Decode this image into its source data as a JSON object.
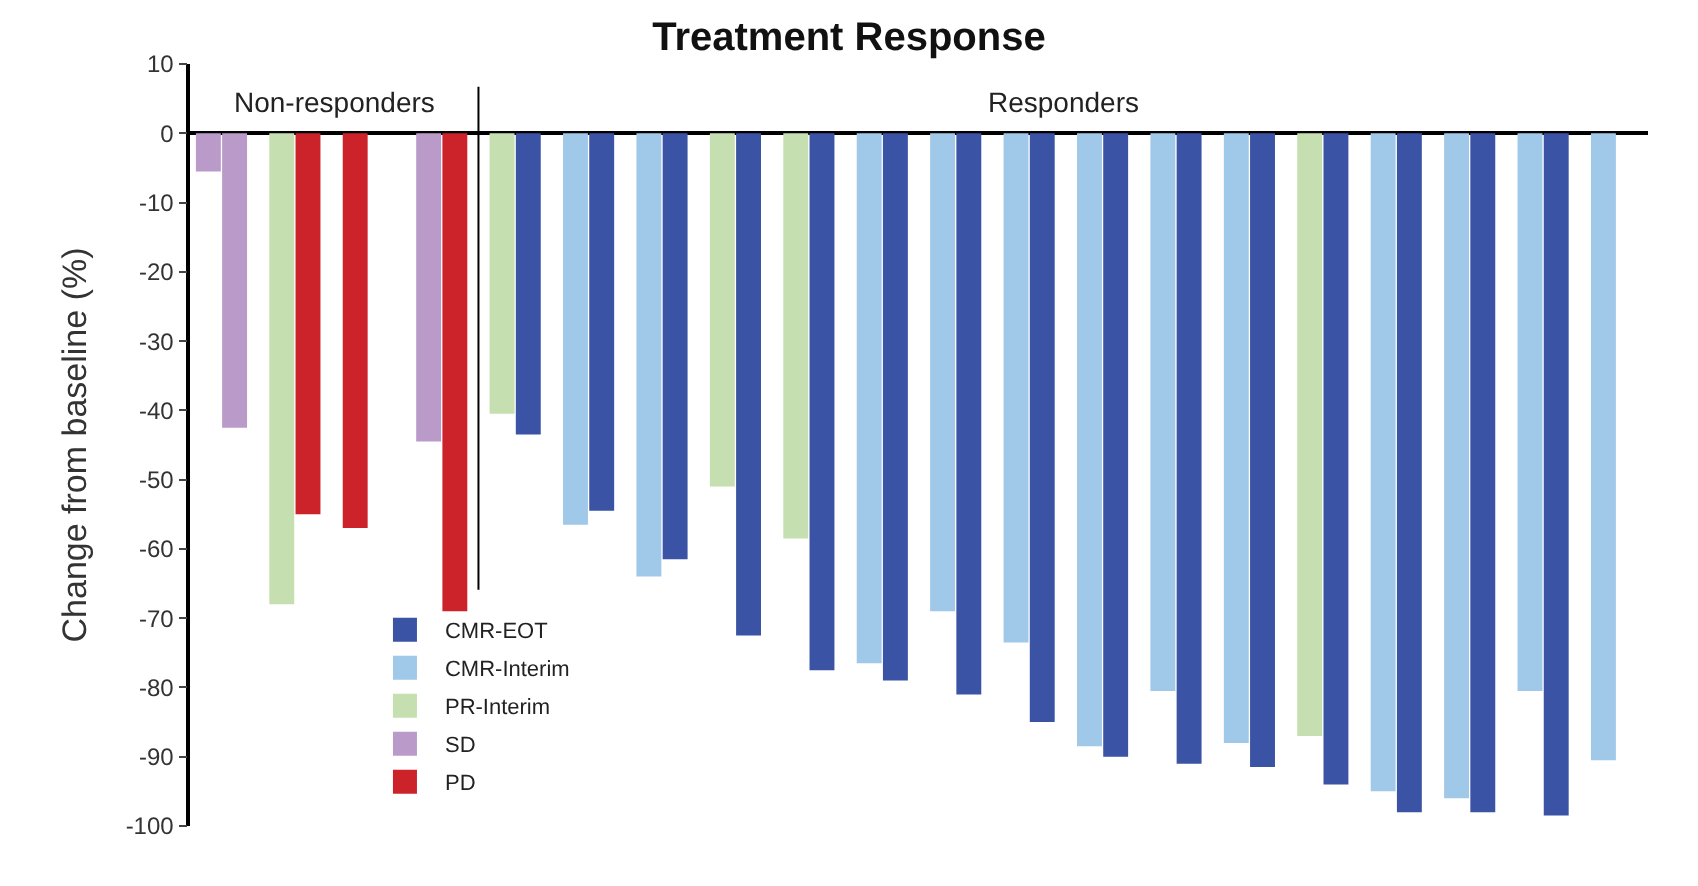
{
  "chart_data": {
    "type": "bar",
    "title": "Treatment Response",
    "ylabel": "Change from baseline (%)",
    "categories": [
      null,
      null,
      null,
      null,
      null,
      null,
      null,
      null,
      null,
      null,
      null,
      null,
      null,
      null,
      null,
      null,
      null,
      null,
      null,
      null,
      null,
      null,
      null,
      null,
      null,
      null,
      null,
      null,
      null,
      null,
      null,
      null,
      null,
      null,
      null,
      null,
      null,
      null,
      null,
      null
    ],
    "series": [
      {
        "name": "CMR-EOT",
        "color": "#3a53a4",
        "values": [
          null,
          null,
          null,
          null,
          null,
          null,
          null,
          null,
          null,
          -43.5,
          null,
          -54.5,
          null,
          -61.5,
          null,
          -72.5,
          null,
          -77.5,
          null,
          -79,
          null,
          -81,
          null,
          -85,
          null,
          -90,
          null,
          -91,
          null,
          -91.5,
          null,
          -94,
          null,
          -98,
          null,
          -98,
          null,
          -98.5,
          null,
          null
        ]
      },
      {
        "name": "CMR-Interim",
        "color": "#9fc8e9",
        "values": [
          null,
          null,
          null,
          null,
          null,
          null,
          null,
          null,
          null,
          null,
          -56.5,
          null,
          -64,
          null,
          null,
          null,
          null,
          null,
          -76.5,
          null,
          -69,
          null,
          -73.5,
          null,
          -88.5,
          null,
          -80.5,
          null,
          -88,
          null,
          null,
          null,
          -95,
          null,
          -96,
          null,
          -80.5,
          null,
          -90.5,
          null
        ]
      },
      {
        "name": "PR-Interim",
        "color": "#c6dfb0",
        "values": [
          null,
          null,
          -68,
          null,
          null,
          null,
          null,
          null,
          -40.5,
          null,
          null,
          null,
          null,
          null,
          -51,
          null,
          -58.5,
          null,
          null,
          null,
          null,
          null,
          null,
          null,
          null,
          null,
          null,
          null,
          null,
          null,
          -87,
          null,
          null,
          null,
          null,
          null,
          null,
          null,
          null,
          null
        ]
      },
      {
        "name": "SD",
        "color": "#b99ac9",
        "values": [
          -5.5,
          -42.5,
          null,
          null,
          null,
          null,
          -44.5,
          null,
          null,
          null,
          null,
          null,
          null,
          null,
          null,
          null,
          null,
          null,
          null,
          null,
          null,
          null,
          null,
          null,
          null,
          null,
          null,
          null,
          null,
          null,
          null,
          null,
          null,
          null,
          null,
          null,
          null,
          null,
          null,
          null
        ]
      },
      {
        "name": "PD",
        "color": "#cc2229",
        "values": [
          null,
          null,
          null,
          -55,
          -57,
          null,
          null,
          -69,
          null,
          null,
          null,
          null,
          null,
          null,
          null,
          null,
          null,
          null,
          null,
          null,
          null,
          null,
          null,
          null,
          null,
          null,
          null,
          null,
          null,
          null,
          null,
          null,
          null,
          null,
          null,
          null,
          null,
          null,
          null,
          null
        ]
      }
    ],
    "stacked": false,
    "ylim": [
      -100,
      10
    ],
    "yticks": [
      10,
      0,
      -10,
      -20,
      -30,
      -40,
      -50,
      -60,
      -70,
      -80,
      -90,
      -100
    ],
    "annotations": [
      "Non-responders",
      "Responders"
    ],
    "legend": "bottom left"
  }
}
